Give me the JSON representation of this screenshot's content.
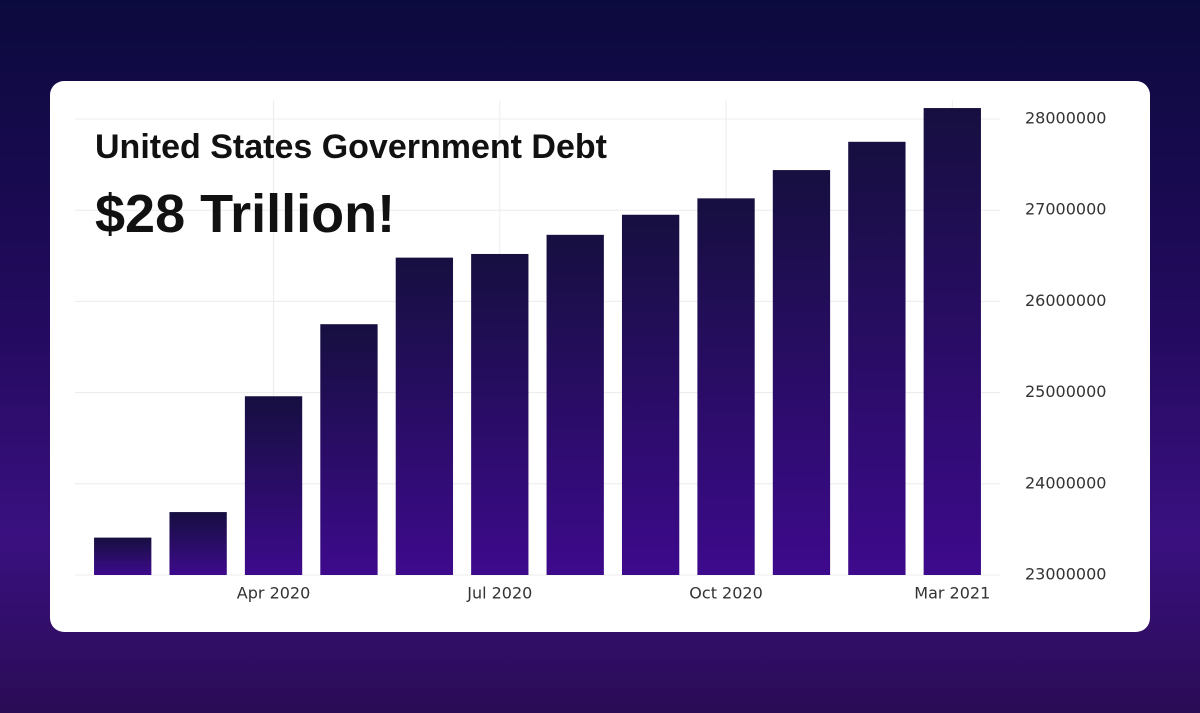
{
  "chart_data": {
    "type": "bar",
    "title": "United States Government Debt",
    "subtitle": "$28 Trillion!",
    "categories": [
      null,
      null,
      "Apr 2020",
      null,
      null,
      "Jul 2020",
      null,
      null,
      "Oct 2020",
      null,
      null,
      "Mar 2021"
    ],
    "values": [
      23410000,
      23690000,
      24960000,
      25750000,
      26480000,
      26520000,
      26730000,
      26950000,
      27130000,
      27440000,
      27750000,
      28120000
    ],
    "color": "#3d0a8c",
    "ylim": [
      23000000,
      28200000
    ],
    "yticks": [
      23000000,
      24000000,
      25000000,
      26000000,
      27000000,
      28000000
    ],
    "grid": true
  }
}
